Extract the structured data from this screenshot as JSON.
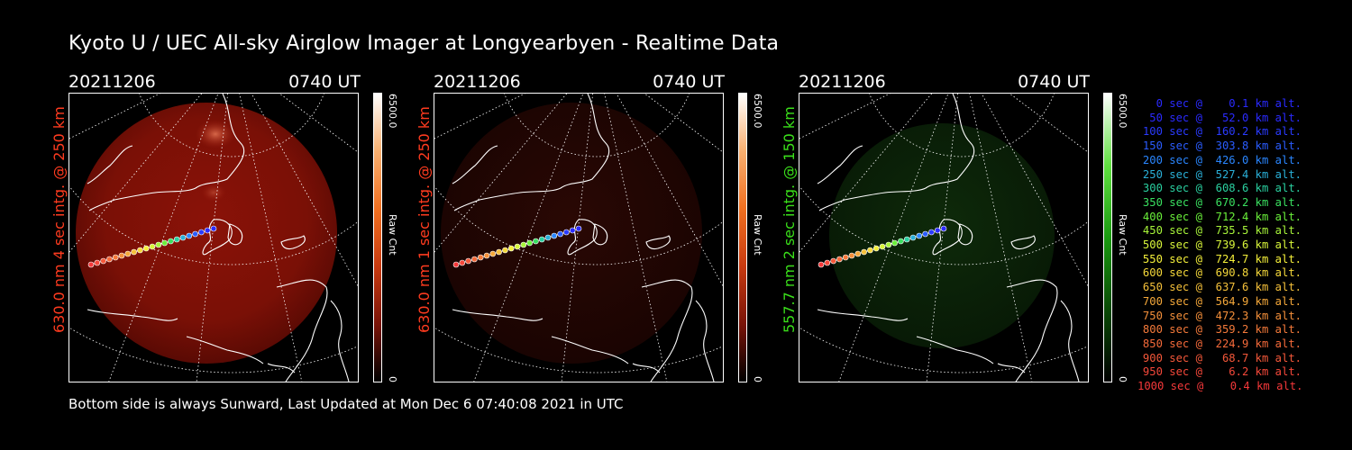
{
  "header": {
    "title": "Kyoto U / UEC All-sky Airglow Imager at Longyearbyen - Realtime Data"
  },
  "panels": [
    {
      "date": "20211206",
      "time": "0740 UT",
      "side_label": "630.0 nm 4 sec intg. @ 250 km",
      "label_color": "#ff3b1f",
      "colorbar_max": "6500.0",
      "colorbar_min": "0",
      "colorbar_unit": "Raw Cnt",
      "image_tint": "red-strong"
    },
    {
      "date": "20211206",
      "time": "0740 UT",
      "side_label": "630.0 nm 1 sec intg. @ 250 km",
      "label_color": "#ff3b1f",
      "colorbar_max": "6500.0",
      "colorbar_min": "0",
      "colorbar_unit": "Raw Cnt",
      "image_tint": "red-faint"
    },
    {
      "date": "20211206",
      "time": "0740 UT",
      "side_label": "557.7 nm 2 sec intg. @ 150 km",
      "label_color": "#3adf1a",
      "colorbar_max": "6500.0",
      "colorbar_min": "0",
      "colorbar_unit": "Raw Cnt",
      "image_tint": "green-faint"
    }
  ],
  "footer": {
    "text": "Bottom side is always Sunward, Last Updated at Mon Dec  6 07:40:08 2021 in UTC"
  },
  "legend": [
    {
      "text": "0 sec @    0.1 km alt.",
      "color": "#2a2aff"
    },
    {
      "text": "50 sec @   52.0 km alt.",
      "color": "#2a2aff"
    },
    {
      "text": "100 sec @  160.2 km alt.",
      "color": "#2a3bff"
    },
    {
      "text": "150 sec @  303.8 km alt.",
      "color": "#2a5cff"
    },
    {
      "text": "200 sec @  426.0 km alt.",
      "color": "#2a86ff"
    },
    {
      "text": "250 sec @  527.4 km alt.",
      "color": "#2ab0d8"
    },
    {
      "text": "300 sec @  608.6 km alt.",
      "color": "#2ad0a0"
    },
    {
      "text": "350 sec @  670.2 km alt.",
      "color": "#3ae060"
    },
    {
      "text": "400 sec @  712.4 km alt.",
      "color": "#6af03a"
    },
    {
      "text": "450 sec @  735.5 km alt.",
      "color": "#a8f53a"
    },
    {
      "text": "500 sec @  739.6 km alt.",
      "color": "#d8f53a"
    },
    {
      "text": "550 sec @  724.7 km alt.",
      "color": "#f5f03a"
    },
    {
      "text": "600 sec @  690.8 km alt.",
      "color": "#f5d83a"
    },
    {
      "text": "650 sec @  637.6 km alt.",
      "color": "#f5c03a"
    },
    {
      "text": "700 sec @  564.9 km alt.",
      "color": "#f5a83a"
    },
    {
      "text": "750 sec @  472.3 km alt.",
      "color": "#f5903a"
    },
    {
      "text": "800 sec @  359.2 km alt.",
      "color": "#f57a3a"
    },
    {
      "text": "850 sec @  224.9 km alt.",
      "color": "#f56a3a"
    },
    {
      "text": "900 sec @   68.7 km alt.",
      "color": "#f5583a"
    },
    {
      "text": "950 sec @    6.2 km alt.",
      "color": "#f5483a"
    },
    {
      "text": "1000 sec @    0.4 km alt.",
      "color": "#f5383a"
    }
  ]
}
